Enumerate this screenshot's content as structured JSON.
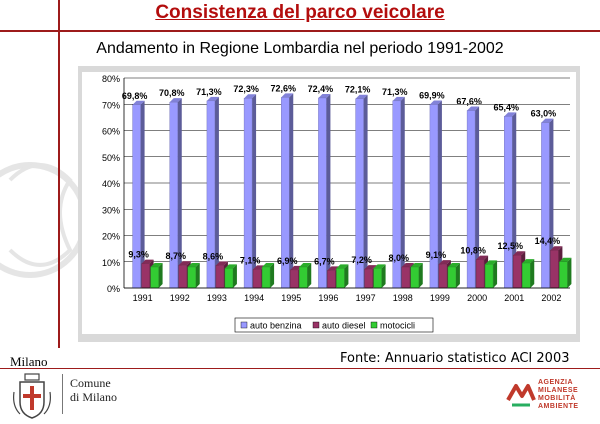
{
  "header": {
    "title": "Consistenza del parco veicolare",
    "subtitle": "Andamento in Regione Lombardia nel periodo 1991-2002"
  },
  "footer": {
    "source": "Fonte: Annuario statistico ACI 2003",
    "city": "Milano",
    "comune_line1": "Comune",
    "comune_line2": "di Milano",
    "agency_lines": [
      "AGENZIA",
      "MILANESE",
      "MOBILITÀ",
      "AMBIENTE"
    ]
  },
  "colors": {
    "title": "#b30d0d",
    "rule": "#9d1b1b",
    "benzina": "#9999ff",
    "diesel": "#993366",
    "metano": "#33cc33",
    "plot_bg": "#ffffff",
    "frame_bg": "#d9d9d9"
  },
  "chart_data": {
    "type": "bar",
    "categories": [
      "1991",
      "1992",
      "1993",
      "1994",
      "1995",
      "1996",
      "1997",
      "1998",
      "1999",
      "2000",
      "2001",
      "2002"
    ],
    "ylim": [
      0,
      80
    ],
    "yticks": [
      "0%",
      "10%",
      "20%",
      "30%",
      "40%",
      "50%",
      "60%",
      "70%",
      "80%"
    ],
    "legend_position": "bottom",
    "series": [
      {
        "name": "auto benzina",
        "values": [
          69.8,
          70.8,
          71.3,
          72.3,
          72.6,
          72.4,
          72.1,
          71.3,
          69.9,
          67.6,
          65.4,
          63.0
        ],
        "labels": [
          "69,8%",
          "70,8%",
          "71,3%",
          "72,3%",
          "72,6%",
          "72,4%",
          "72,1%",
          "71,3%",
          "69,9%",
          "67,6%",
          "65,4%",
          "63,0%"
        ]
      },
      {
        "name": "auto diesel",
        "values": [
          9.3,
          8.7,
          8.6,
          7.1,
          6.9,
          6.7,
          7.2,
          8.0,
          9.1,
          10.8,
          12.5,
          14.4
        ],
        "labels": [
          "9,3%",
          "8,7%",
          "8,6%",
          "7,1%",
          "6,9%",
          "6,7%",
          "7,2%",
          "8,0%",
          "9,1%",
          "10,8%",
          "12,5%",
          "14,4%"
        ]
      },
      {
        "name": "motocicli",
        "values": [
          8.0,
          8.0,
          7.5,
          8.0,
          8.0,
          7.5,
          7.5,
          8.0,
          8.0,
          9.0,
          9.5,
          10.0
        ],
        "labels": []
      }
    ]
  }
}
